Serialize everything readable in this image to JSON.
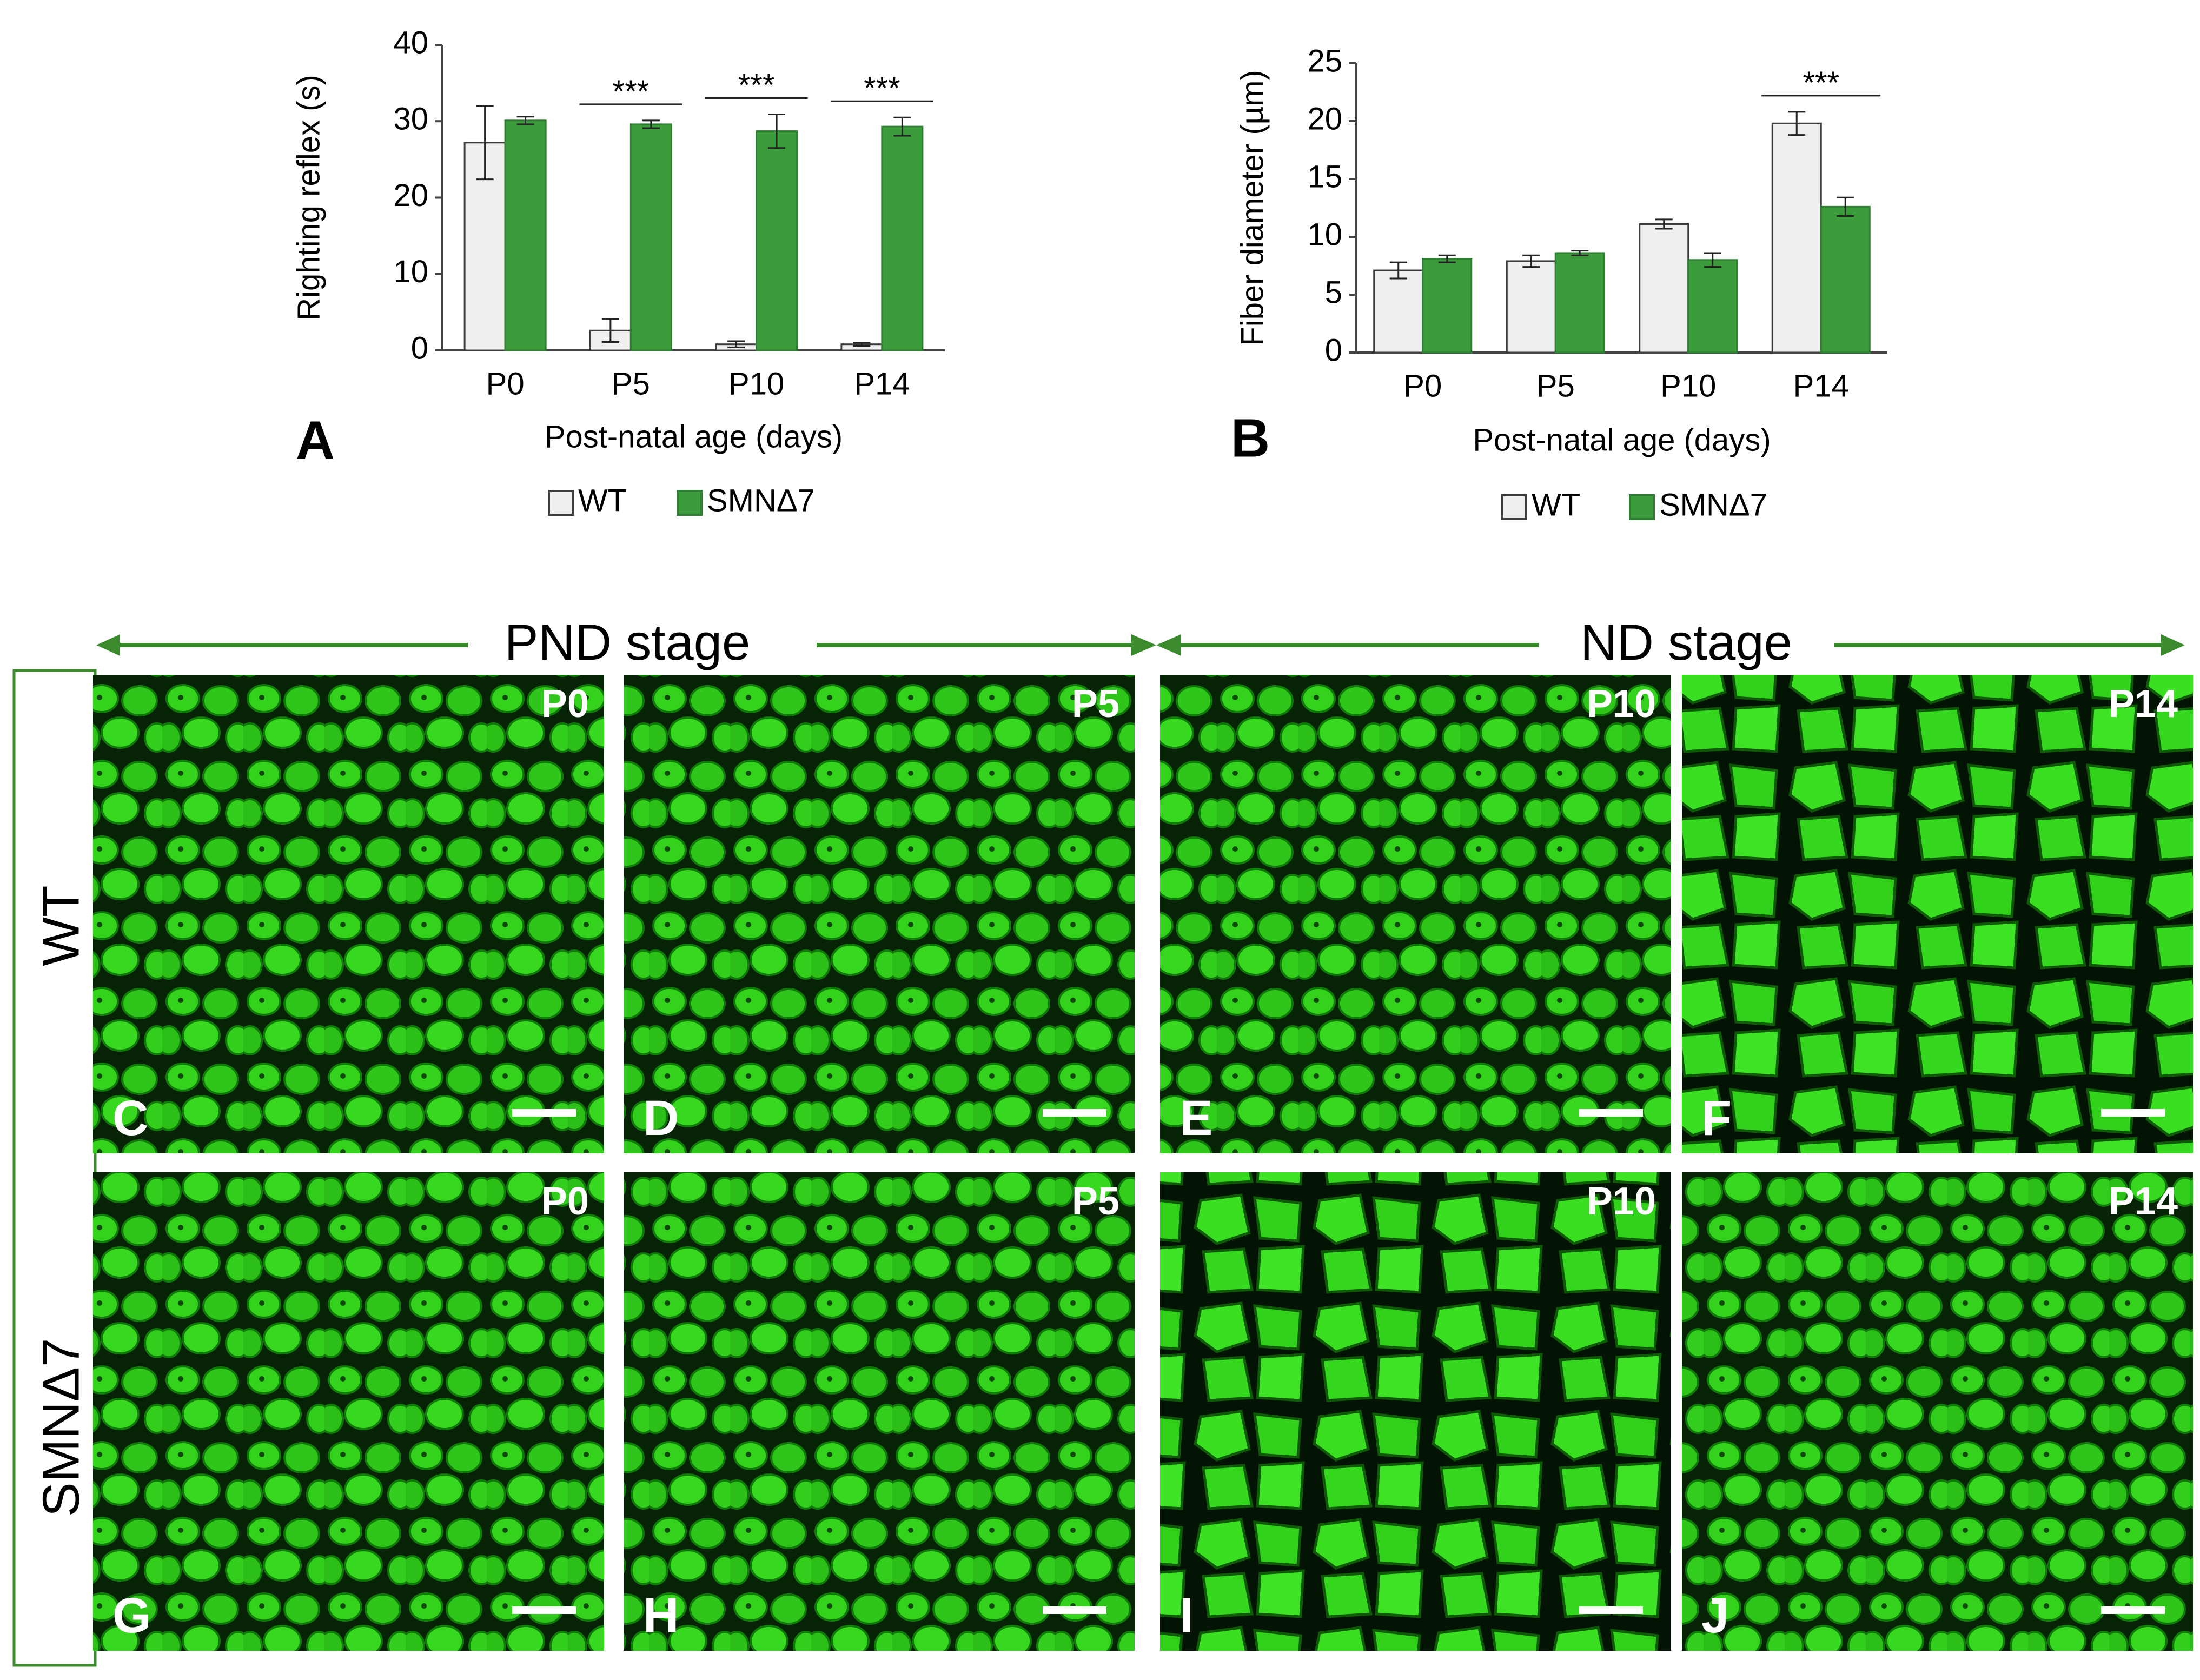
{
  "charts": {
    "A": {
      "panel_letter": "A",
      "type": "bar",
      "categories": [
        "P0",
        "P5",
        "P10",
        "P14"
      ],
      "series": [
        {
          "name": "WT",
          "values": [
            27.2,
            2.6,
            0.8,
            0.8
          ],
          "errors": [
            4.8,
            1.5,
            0.4,
            0.2
          ]
        },
        {
          "name": "SMNΔ7",
          "values": [
            30.1,
            29.6,
            28.7,
            29.3
          ],
          "errors": [
            0.5,
            0.5,
            2.2,
            1.2
          ]
        }
      ],
      "significance": [
        "",
        "***",
        "***",
        "***"
      ],
      "ylim": [
        0,
        40
      ],
      "yticks": [
        0,
        10,
        20,
        30,
        40
      ],
      "ylabel": "Righting reflex (s)",
      "xlabel": "Post-natal age (days)",
      "legend": [
        "WT",
        "SMNΔ7"
      ]
    },
    "B": {
      "panel_letter": "B",
      "type": "bar",
      "categories": [
        "P0",
        "P5",
        "P10",
        "P14"
      ],
      "series": [
        {
          "name": "WT",
          "values": [
            7.1,
            7.9,
            11.1,
            19.8
          ],
          "errors": [
            0.7,
            0.5,
            0.4,
            1.0
          ]
        },
        {
          "name": "SMNΔ7",
          "values": [
            8.1,
            8.6,
            8.0,
            12.6
          ],
          "errors": [
            0.3,
            0.2,
            0.6,
            0.8
          ]
        }
      ],
      "significance": [
        "",
        "",
        "",
        "***"
      ],
      "ylim": [
        0,
        25
      ],
      "yticks": [
        0,
        5,
        10,
        15,
        20,
        25
      ],
      "ylabel": "Fiber diameter (µm)",
      "xlabel": "Post-natal age (days)",
      "legend": [
        "WT",
        "SMNΔ7"
      ]
    }
  },
  "colors": {
    "wt_fill": "#efefef",
    "wt_stroke": "#3d3d3d",
    "smn_fill": "#3c9c3c",
    "smn_stroke": "#2e7d32",
    "arrow": "#3c8a2e",
    "tissue_bg": "#062306",
    "fiber": "#34d21c",
    "fiber_edge": "#107a08"
  },
  "stage_labels": {
    "pnd": "PND stage",
    "nd": "ND stage"
  },
  "row_labels": {
    "wt": "WT",
    "smn": "SMNΔ7"
  },
  "micrographs": [
    {
      "letter": "C",
      "age": "P0",
      "row": "wt"
    },
    {
      "letter": "D",
      "age": "P5",
      "row": "wt"
    },
    {
      "letter": "E",
      "age": "P10",
      "row": "wt"
    },
    {
      "letter": "F",
      "age": "P14",
      "row": "wt"
    },
    {
      "letter": "G",
      "age": "P0",
      "row": "smn"
    },
    {
      "letter": "H",
      "age": "P5",
      "row": "smn"
    },
    {
      "letter": "I",
      "age": "P10",
      "row": "smn"
    },
    {
      "letter": "J",
      "age": "P14",
      "row": "smn"
    }
  ]
}
